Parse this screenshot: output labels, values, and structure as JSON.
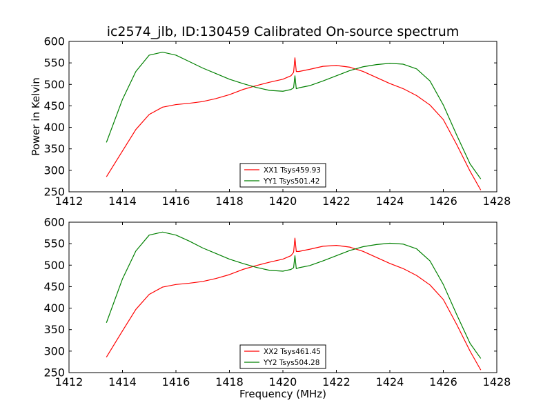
{
  "figure": {
    "title": "ic2574_jlb, ID:130459 Calibrated On-source spectrum"
  },
  "chart_data": [
    {
      "type": "line",
      "title": "ic2574_jlb, ID:130459 Calibrated On-source spectrum",
      "xlabel": "",
      "ylabel": "Power in Kelvin",
      "xlim": [
        1412,
        1428
      ],
      "ylim": [
        250,
        600
      ],
      "xticks": [
        "1412",
        "1414",
        "1416",
        "1418",
        "1420",
        "1422",
        "1424",
        "1426",
        "1428"
      ],
      "yticks": [
        "250",
        "300",
        "350",
        "400",
        "450",
        "500",
        "550",
        "600"
      ],
      "grid": false,
      "legend_position": "lower-center",
      "series": [
        {
          "name": "XX1 Tsys459.93",
          "color": "#ff0000",
          "x": [
            1413.4,
            1414.0,
            1414.5,
            1415.0,
            1415.5,
            1416.0,
            1416.5,
            1417.0,
            1417.5,
            1418.0,
            1418.5,
            1419.0,
            1419.5,
            1420.0,
            1420.3,
            1420.4,
            1420.45,
            1420.5,
            1420.6,
            1421.0,
            1421.5,
            1422.0,
            1422.5,
            1423.0,
            1423.5,
            1424.0,
            1424.5,
            1425.0,
            1425.5,
            1426.0,
            1426.5,
            1427.0,
            1427.4
          ],
          "values": [
            285,
            345,
            395,
            430,
            447,
            453,
            456,
            460,
            467,
            476,
            488,
            497,
            505,
            512,
            520,
            528,
            562,
            530,
            530,
            535,
            542,
            544,
            540,
            530,
            516,
            502,
            490,
            474,
            452,
            418,
            360,
            298,
            254
          ]
        },
        {
          "name": "YY1 Tsys501.42",
          "color": "#008000",
          "x": [
            1413.4,
            1414.0,
            1414.5,
            1415.0,
            1415.5,
            1416.0,
            1416.5,
            1417.0,
            1417.5,
            1418.0,
            1418.5,
            1419.0,
            1419.5,
            1420.0,
            1420.3,
            1420.4,
            1420.45,
            1420.5,
            1420.6,
            1421.0,
            1421.5,
            1422.0,
            1422.5,
            1423.0,
            1423.5,
            1424.0,
            1424.5,
            1425.0,
            1425.5,
            1426.0,
            1426.5,
            1427.0,
            1427.4
          ],
          "values": [
            365,
            465,
            530,
            568,
            575,
            568,
            553,
            538,
            525,
            512,
            502,
            493,
            486,
            484,
            488,
            492,
            520,
            490,
            492,
            497,
            508,
            520,
            532,
            541,
            546,
            549,
            547,
            536,
            508,
            452,
            382,
            315,
            280
          ]
        }
      ]
    },
    {
      "type": "line",
      "title": "",
      "xlabel": "Frequency (MHz)",
      "ylabel": "",
      "xlim": [
        1412,
        1428
      ],
      "ylim": [
        250,
        600
      ],
      "xticks": [
        "1412",
        "1414",
        "1416",
        "1418",
        "1420",
        "1422",
        "1424",
        "1426",
        "1428"
      ],
      "yticks": [
        "250",
        "300",
        "350",
        "400",
        "450",
        "500",
        "550",
        "600"
      ],
      "grid": false,
      "legend_position": "lower-center",
      "series": [
        {
          "name": "XX2 Tsys461.45",
          "color": "#ff0000",
          "x": [
            1413.4,
            1414.0,
            1414.5,
            1415.0,
            1415.5,
            1416.0,
            1416.5,
            1417.0,
            1417.5,
            1418.0,
            1418.5,
            1419.0,
            1419.5,
            1420.0,
            1420.3,
            1420.4,
            1420.45,
            1420.5,
            1420.6,
            1421.0,
            1421.5,
            1422.0,
            1422.5,
            1423.0,
            1423.5,
            1424.0,
            1424.5,
            1425.0,
            1425.5,
            1426.0,
            1426.5,
            1427.0,
            1427.4
          ],
          "values": [
            286,
            347,
            397,
            432,
            449,
            455,
            458,
            462,
            469,
            478,
            490,
            499,
            507,
            514,
            522,
            530,
            563,
            532,
            532,
            537,
            544,
            546,
            542,
            532,
            518,
            504,
            492,
            476,
            454,
            420,
            362,
            300,
            256
          ]
        },
        {
          "name": "YY2 Tsys504.28",
          "color": "#008000",
          "x": [
            1413.4,
            1414.0,
            1414.5,
            1415.0,
            1415.5,
            1416.0,
            1416.5,
            1417.0,
            1417.5,
            1418.0,
            1418.5,
            1419.0,
            1419.5,
            1420.0,
            1420.3,
            1420.4,
            1420.45,
            1420.5,
            1420.6,
            1421.0,
            1421.5,
            1422.0,
            1422.5,
            1423.0,
            1423.5,
            1424.0,
            1424.5,
            1425.0,
            1425.5,
            1426.0,
            1426.5,
            1427.0,
            1427.4
          ],
          "values": [
            366,
            468,
            533,
            570,
            577,
            570,
            556,
            540,
            527,
            514,
            504,
            495,
            488,
            486,
            490,
            494,
            522,
            492,
            494,
            499,
            510,
            522,
            534,
            543,
            548,
            551,
            549,
            538,
            510,
            455,
            385,
            318,
            283
          ]
        }
      ]
    }
  ]
}
